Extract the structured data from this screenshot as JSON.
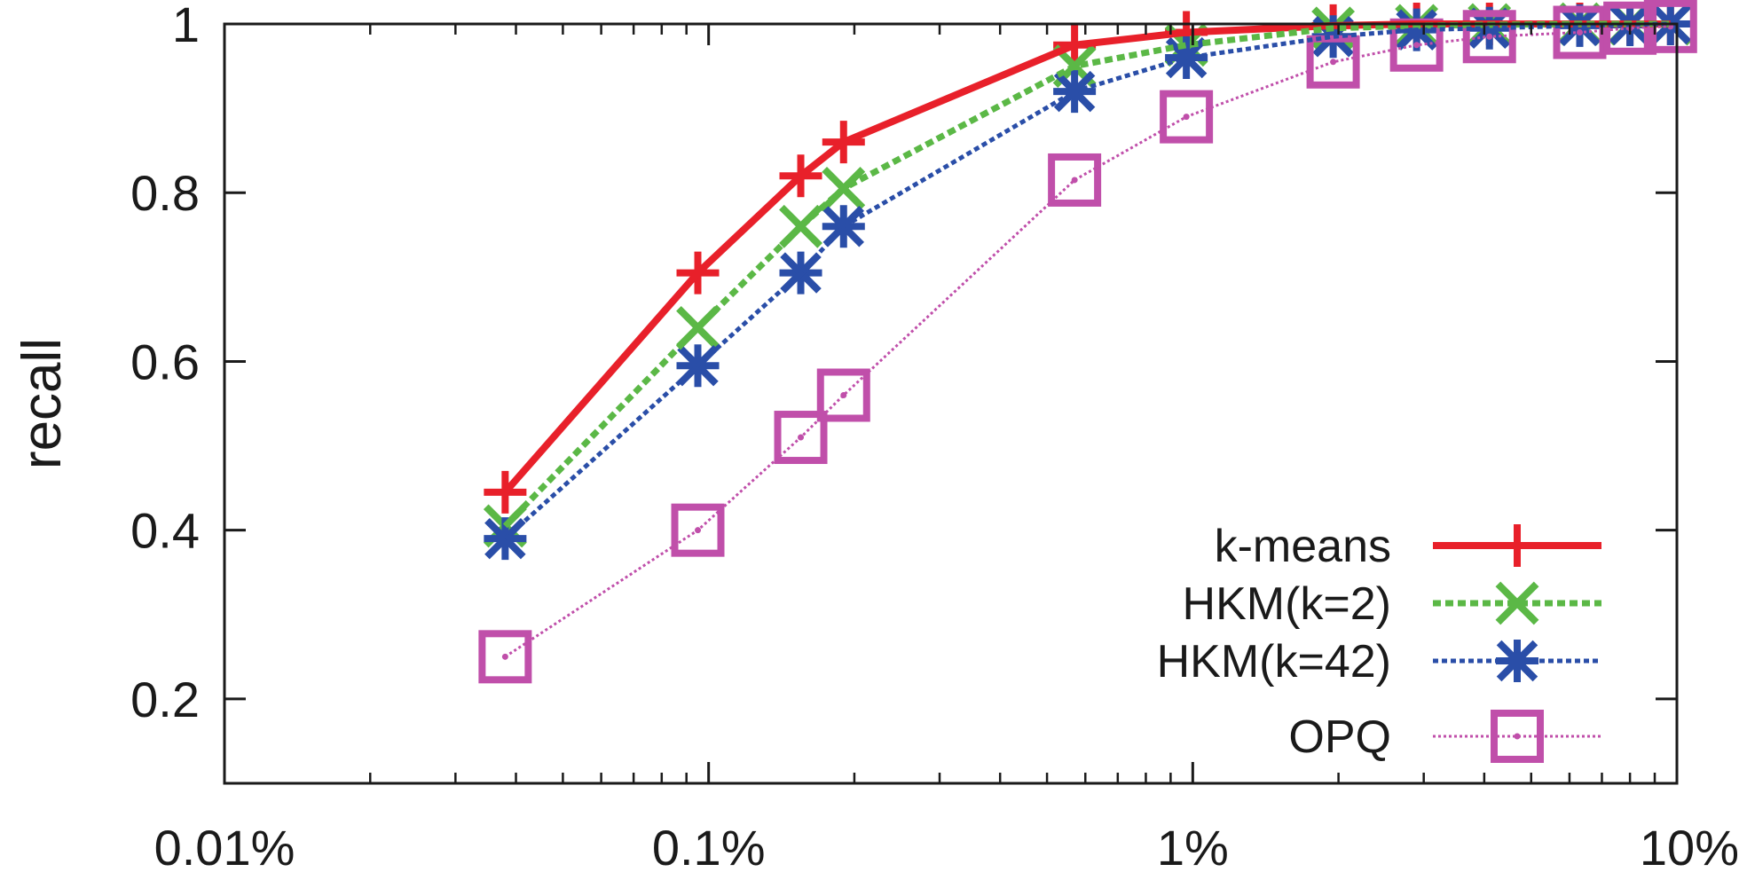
{
  "chart_data": {
    "type": "line",
    "xscale": "log",
    "xlim": [
      0.01,
      10
    ],
    "ylim": [
      0.1,
      1.0
    ],
    "xlabel": "",
    "ylabel": "recall",
    "grid": false,
    "legend_position": "bottom-right",
    "x_tick_labels": [
      {
        "value": 0.01,
        "label": "0.01%"
      },
      {
        "value": 0.1,
        "label": "0.1%"
      },
      {
        "value": 1,
        "label": "1%"
      },
      {
        "value": 10,
        "label": "10%"
      }
    ],
    "y_tick_labels": [
      {
        "value": 0.2,
        "label": "0.2"
      },
      {
        "value": 0.4,
        "label": "0.4"
      },
      {
        "value": 0.6,
        "label": "0.6"
      },
      {
        "value": 0.8,
        "label": "0.8"
      },
      {
        "value": 1.0,
        "label": "1"
      }
    ],
    "series": [
      {
        "name": "k-means",
        "color": "#e8202a",
        "line": "solid",
        "marker": "plus",
        "x": [
          0.038,
          0.095,
          0.155,
          0.19,
          0.57,
          0.97,
          1.95,
          2.9,
          4.1,
          6.3,
          8.0,
          9.7
        ],
        "y": [
          0.445,
          0.705,
          0.82,
          0.86,
          0.975,
          0.99,
          0.998,
          1.0,
          1.0,
          1.0,
          1.0,
          1.0
        ]
      },
      {
        "name": "HKM(k=2)",
        "color": "#5bb846",
        "line": "dashed",
        "marker": "x",
        "x": [
          0.038,
          0.095,
          0.155,
          0.19,
          0.57,
          0.97,
          1.95,
          2.9,
          4.1,
          6.3,
          8.0,
          9.7
        ],
        "y": [
          0.405,
          0.64,
          0.76,
          0.805,
          0.95,
          0.975,
          0.995,
          0.998,
          0.999,
          1.0,
          1.0,
          1.0
        ]
      },
      {
        "name": "HKM(k=42)",
        "color": "#2a4ea8",
        "line": "dotted",
        "marker": "asterisk",
        "x": [
          0.038,
          0.095,
          0.155,
          0.19,
          0.57,
          0.97,
          1.95,
          2.9,
          4.1,
          6.3,
          8.0,
          9.7
        ],
        "y": [
          0.39,
          0.595,
          0.705,
          0.76,
          0.92,
          0.96,
          0.985,
          0.993,
          0.995,
          0.998,
          0.999,
          1.0
        ]
      },
      {
        "name": "OPQ",
        "color": "#c04faa",
        "line": "dotted-fine",
        "marker": "square",
        "x": [
          0.038,
          0.095,
          0.155,
          0.19,
          0.57,
          0.97,
          1.95,
          2.9,
          4.1,
          6.3,
          8.0,
          9.7
        ],
        "y": [
          0.25,
          0.4,
          0.51,
          0.56,
          0.815,
          0.89,
          0.955,
          0.975,
          0.985,
          0.99,
          0.995,
          0.997
        ]
      }
    ]
  }
}
